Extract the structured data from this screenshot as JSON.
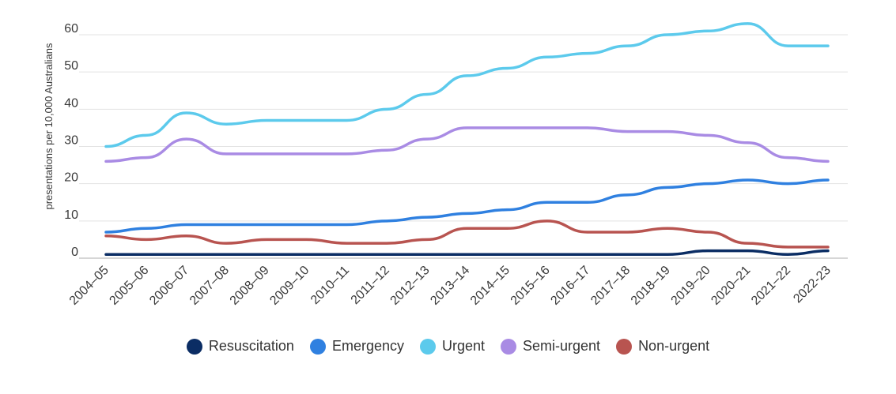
{
  "chart_data": {
    "type": "line",
    "title": "",
    "xlabel": "",
    "ylabel": "presentations per 10,000 Australians",
    "ylim": [
      0,
      60
    ],
    "yticks": [
      0,
      10,
      20,
      30,
      40,
      50,
      60
    ],
    "grid": true,
    "legend_position": "bottom",
    "categories": [
      "2004–05",
      "2005–06",
      "2006–07",
      "2007–08",
      "2008–09",
      "2009–10",
      "2010–11",
      "2011–12",
      "2012–13",
      "2013–14",
      "2014–15",
      "2015–16",
      "2016–17",
      "2017–18",
      "2018–19",
      "2019–20",
      "2020–21",
      "2021–22",
      "2022-23"
    ],
    "series": [
      {
        "name": "Resuscitation",
        "color": "#0b2d64",
        "values": [
          1,
          1,
          1,
          1,
          1,
          1,
          1,
          1,
          1,
          1,
          1,
          1,
          1,
          1,
          1,
          2,
          2,
          1,
          2
        ]
      },
      {
        "name": "Emergency",
        "color": "#2f80e0",
        "values": [
          7,
          8,
          9,
          9,
          9,
          9,
          9,
          10,
          11,
          12,
          13,
          15,
          15,
          17,
          19,
          20,
          21,
          20,
          21
        ]
      },
      {
        "name": "Urgent",
        "color": "#5ccaec",
        "values": [
          30,
          33,
          39,
          36,
          37,
          37,
          37,
          40,
          44,
          49,
          51,
          54,
          55,
          57,
          60,
          61,
          63,
          57,
          57
        ]
      },
      {
        "name": "Semi-urgent",
        "color": "#a98be4",
        "values": [
          26,
          27,
          32,
          28,
          28,
          28,
          28,
          29,
          32,
          35,
          35,
          35,
          35,
          34,
          34,
          33,
          31,
          27,
          26
        ]
      },
      {
        "name": "Non-urgent",
        "color": "#b85450",
        "values": [
          6,
          5,
          6,
          4,
          5,
          5,
          4,
          4,
          5,
          8,
          8,
          10,
          7,
          7,
          8,
          7,
          4,
          3,
          3
        ]
      }
    ]
  }
}
